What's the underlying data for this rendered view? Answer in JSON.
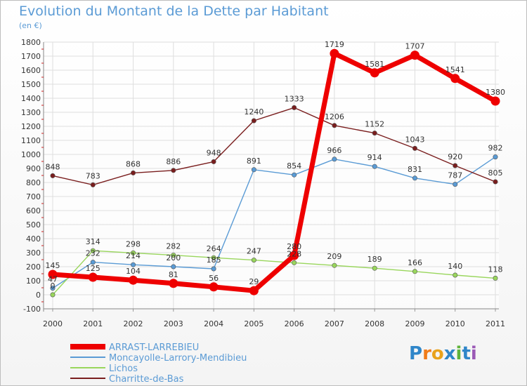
{
  "chart_data": {
    "type": "line",
    "title": "Evolution du Montant de la Dette par Habitant",
    "subtitle": "(en €)",
    "x": [
      "2000",
      "2001",
      "2002",
      "2003",
      "2004",
      "2005",
      "2006",
      "2007",
      "2008",
      "2009",
      "2010",
      "2011"
    ],
    "ylim": [
      -100,
      1800
    ],
    "yticks": [
      -100,
      0,
      100,
      200,
      300,
      400,
      500,
      600,
      700,
      800,
      900,
      1000,
      1100,
      1200,
      1300,
      1400,
      1500,
      1600,
      1700,
      1800
    ],
    "grid": true,
    "legend_position": "bottom-left",
    "series": [
      {
        "name": "ARRAST-LARREBIEU",
        "color": "#ee0000",
        "width": 7,
        "values": [
          145,
          125,
          104,
          81,
          56,
          29,
          280,
          1719,
          1581,
          1707,
          1541,
          1380
        ]
      },
      {
        "name": "Moncayolle-Larrory-Mendibieu",
        "color": "#5a9bd5",
        "width": 1.4,
        "values": [
          47,
          232,
          214,
          200,
          185,
          891,
          854,
          966,
          914,
          831,
          787,
          982
        ]
      },
      {
        "name": "Lichos",
        "color": "#99d65c",
        "width": 1.4,
        "values": [
          0,
          314,
          298,
          282,
          264,
          247,
          228,
          209,
          189,
          166,
          140,
          118
        ]
      },
      {
        "name": "Charritte-de-Bas",
        "color": "#7a1e1e",
        "width": 1.4,
        "values": [
          848,
          783,
          868,
          886,
          948,
          1240,
          1333,
          1206,
          1152,
          1043,
          920,
          805
        ]
      }
    ]
  },
  "brand": {
    "letters": [
      "P",
      "r",
      "o",
      "x",
      "i",
      "t",
      "i"
    ],
    "colors": [
      "#2f86c9",
      "#f07c1a",
      "#e8a21c",
      "#2f86c9",
      "#5fb33b",
      "#2f86c9",
      "#9b59b6"
    ]
  }
}
